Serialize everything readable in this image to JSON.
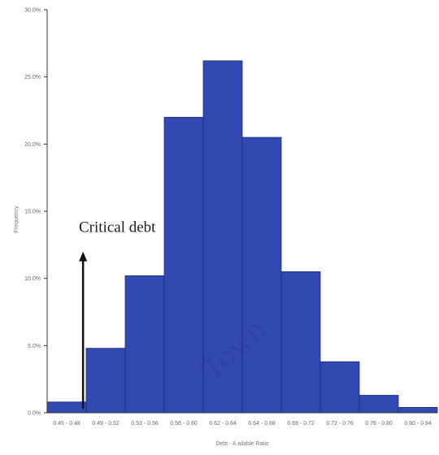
{
  "chart_data": {
    "type": "bar",
    "xlabel": "Debt - A ailable Ratio",
    "ylabel": "Frequency",
    "categories": [
      "0.45 - 0.48",
      "0.49 - 0.52",
      "0.53 - 0.56",
      "0.56 - 0.60",
      "0.62 - 0.64",
      "0.64 - 0.68",
      "0.69 - 0.72",
      "0.72 - 0.76",
      "0.76 - 0.80",
      "0.80 - 0.84"
    ],
    "values": [
      0.8,
      4.8,
      10.2,
      22.0,
      26.2,
      20.5,
      10.5,
      3.8,
      1.3,
      0.4
    ],
    "ylim": [
      0,
      30
    ],
    "yticks": [
      0,
      5,
      10,
      15,
      20,
      25,
      30
    ],
    "ytick_labels": [
      "0.0%",
      "5.0%",
      "10.0%",
      "15.0%",
      "20.0%",
      "25.0%",
      "30.0%"
    ],
    "grid": false,
    "bar_color": "#3349b2",
    "bar_edge_color": "#1c2a7a",
    "annotation": {
      "text": "Critical debt",
      "arrow_x_category": 0,
      "arrow_from_value": 0.3,
      "arrow_to_value": 12.0
    },
    "watermark": "Town"
  }
}
